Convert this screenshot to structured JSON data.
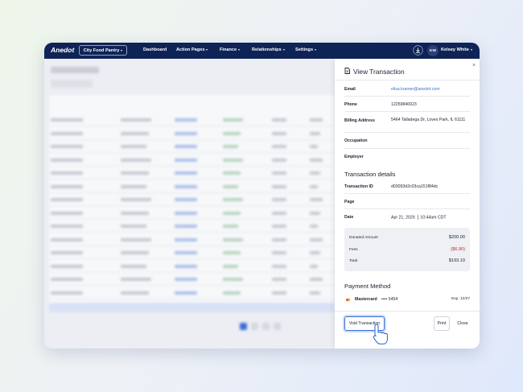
{
  "nav": {
    "logo": "Anedot",
    "organization": "City Food Pantry",
    "items": [
      "Dashboard",
      "Action Pages",
      "Finance",
      "Relationships",
      "Settings"
    ],
    "user_initials": "KW",
    "user_name": "Kelsey White"
  },
  "panel": {
    "title": "View Transaction",
    "contact": [
      {
        "label": "Email",
        "value": "elisa.kramer@anedot.com"
      },
      {
        "label": "Phone",
        "value": "12259840023"
      },
      {
        "label": "Billing Address",
        "value": "5464 Talladega Dr, Loves Park, IL 61111"
      },
      {
        "label": "Occupation"
      },
      {
        "label": "Employer"
      }
    ],
    "details_heading": "Transaction details",
    "details": [
      {
        "label": "Transaction ID",
        "value": "d03093d2c03ca151f84dc"
      },
      {
        "label": "Page"
      },
      {
        "label": "Date",
        "date": "Apr 21, 2026",
        "time": "10:44am CDT"
      }
    ],
    "summary": [
      {
        "label": "Donated Amount",
        "value": "$200.00"
      },
      {
        "label": "Fees",
        "value": "($6.90)"
      },
      {
        "label": "Total",
        "value": "$193.10"
      }
    ],
    "payment_heading": "Payment Method",
    "card": {
      "brand": "Mastercard",
      "number": "•••• 5454",
      "expiry": "Exp. 12/27"
    },
    "buttons": {
      "void": "Void Transaction",
      "print": "Print",
      "close": "Close"
    }
  }
}
